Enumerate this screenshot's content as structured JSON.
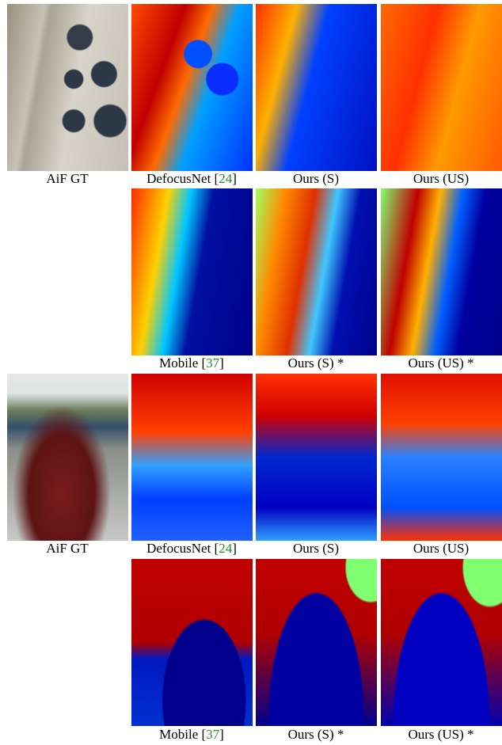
{
  "figure": {
    "rows": [
      {
        "panels": [
          {
            "caption": [
              {
                "text": "AiF GT"
              }
            ]
          },
          {
            "caption": [
              {
                "text": "DefocusNet ["
              },
              {
                "text": "24",
                "cite": true
              },
              {
                "text": "]"
              }
            ]
          },
          {
            "caption": [
              {
                "text": "Ours (S)"
              }
            ]
          },
          {
            "caption": [
              {
                "text": "Ours (US)"
              }
            ]
          }
        ]
      },
      {
        "panels": [
          {
            "caption": [
              {
                "text": "Mobile ["
              },
              {
                "text": "37",
                "cite": true
              },
              {
                "text": "]"
              }
            ]
          },
          {
            "caption": [
              {
                "text": "Ours (S) *"
              }
            ]
          },
          {
            "caption": [
              {
                "text": "Ours (US) *"
              }
            ]
          }
        ]
      },
      {
        "panels": [
          {
            "caption": [
              {
                "text": "AiF GT"
              }
            ]
          },
          {
            "caption": [
              {
                "text": "DefocusNet ["
              },
              {
                "text": "24",
                "cite": true
              },
              {
                "text": "]"
              }
            ]
          },
          {
            "caption": [
              {
                "text": "Ours (S)"
              }
            ]
          },
          {
            "caption": [
              {
                "text": "Ours (US)"
              }
            ]
          }
        ]
      },
      {
        "panels": [
          {
            "caption": [
              {
                "text": "Mobile ["
              },
              {
                "text": "37",
                "cite": true
              },
              {
                "text": "]"
              }
            ]
          },
          {
            "caption": [
              {
                "text": "Ours (S) *"
              }
            ]
          },
          {
            "caption": [
              {
                "text": "Ours (US) *"
              }
            ]
          }
        ]
      }
    ]
  }
}
